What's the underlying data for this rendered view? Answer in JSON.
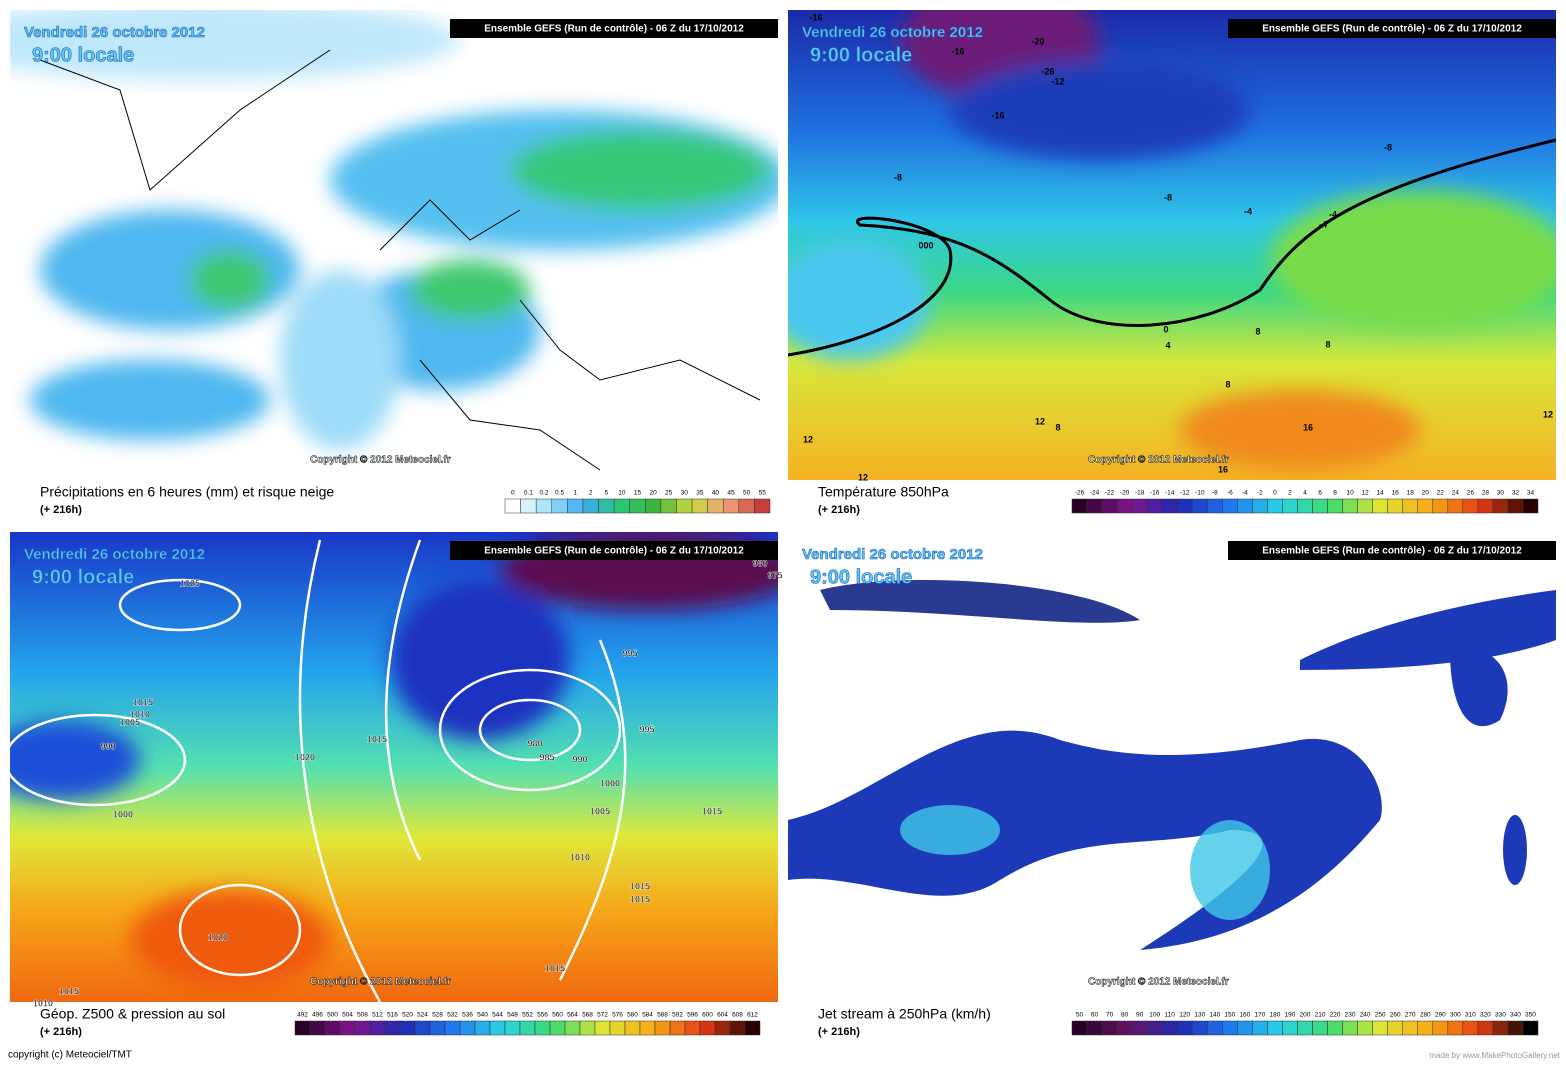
{
  "panels": [
    {
      "date": "Vendredi 26 octobre 2012",
      "time": "9:00 locale",
      "run": "Ensemble GEFS (Run de contrôle)  -  06 Z du 17/10/2012",
      "copyright": "Copyright © 2012 Meteociel.fr",
      "title": "Précipitations en 6 heures (mm) et risque neige",
      "lead": "(+ 216h)",
      "scale": [
        0,
        0.1,
        0.2,
        0.5,
        1,
        2,
        5,
        10,
        15,
        20,
        25,
        30,
        35,
        40,
        45,
        50,
        55
      ],
      "labels": []
    },
    {
      "date": "Vendredi 26 octobre 2012",
      "time": "9:00 locale",
      "run": "Ensemble GEFS (Run de contrôle)  -  06 Z du 17/10/2012",
      "copyright": "Copyright © 2012 Meteociel.fr",
      "title": "Température 850hPa",
      "lead": "(+ 216h)",
      "scale": [
        -26,
        -24,
        -22,
        -20,
        -18,
        -16,
        -14,
        -12,
        -10,
        -8,
        -6,
        -4,
        -2,
        0,
        2,
        4,
        6,
        8,
        10,
        12,
        14,
        16,
        18,
        20,
        22,
        24,
        26,
        28,
        30,
        32,
        34
      ],
      "labels": [
        "-16",
        "-20",
        "-16",
        "-26",
        "-12",
        "-16",
        "-8",
        "-8",
        "-8",
        "-4",
        "-4",
        "-4",
        "000",
        "0",
        "4",
        "8",
        "8",
        "8",
        "12",
        "12",
        "8",
        "16",
        "16",
        "12",
        "12"
      ]
    },
    {
      "date": "Vendredi 26 octobre 2012",
      "time": "9:00 locale",
      "run": "Ensemble GEFS (Run de contrôle)  -  06 Z du 17/10/2012",
      "copyright": "Copyright © 2012 Meteociel.fr",
      "title": "Géop. Z500 & pression au sol",
      "lead": "(+ 216h)",
      "scale": [
        492,
        496,
        500,
        504,
        508,
        512,
        516,
        520,
        524,
        528,
        532,
        536,
        540,
        544,
        548,
        552,
        556,
        560,
        564,
        568,
        572,
        576,
        580,
        584,
        588,
        592,
        596,
        600,
        604,
        608,
        612
      ],
      "labels": [
        "1025",
        "980",
        "975",
        "995",
        "1015",
        "1010",
        "1005",
        "990",
        "995",
        "1000",
        "1020",
        "1015",
        "980",
        "985",
        "990",
        "995",
        "1000",
        "1005",
        "1015",
        "1010",
        "1015",
        "1015",
        "1020",
        "1015",
        "1015",
        "1010"
      ]
    },
    {
      "date": "Vendredi 26 octobre 2012",
      "time": "9:00 locale",
      "run": "Ensemble GEFS (Run de contrôle)  -  06 Z du 17/10/2012",
      "copyright": "Copyright © 2012 Meteociel.fr",
      "title": "Jet stream à 250hPa (km/h)",
      "lead": "(+ 216h)",
      "scale": [
        50,
        60,
        70,
        80,
        90,
        100,
        110,
        120,
        130,
        140,
        150,
        160,
        170,
        180,
        190,
        200,
        210,
        220,
        230,
        240,
        250,
        260,
        270,
        280,
        290,
        300,
        310,
        320,
        330,
        340,
        350
      ],
      "labels": []
    }
  ],
  "footer": {
    "left": "copyright (c) Meteociel/TMT",
    "right": "made by www.MakePhotoGallery.net"
  }
}
